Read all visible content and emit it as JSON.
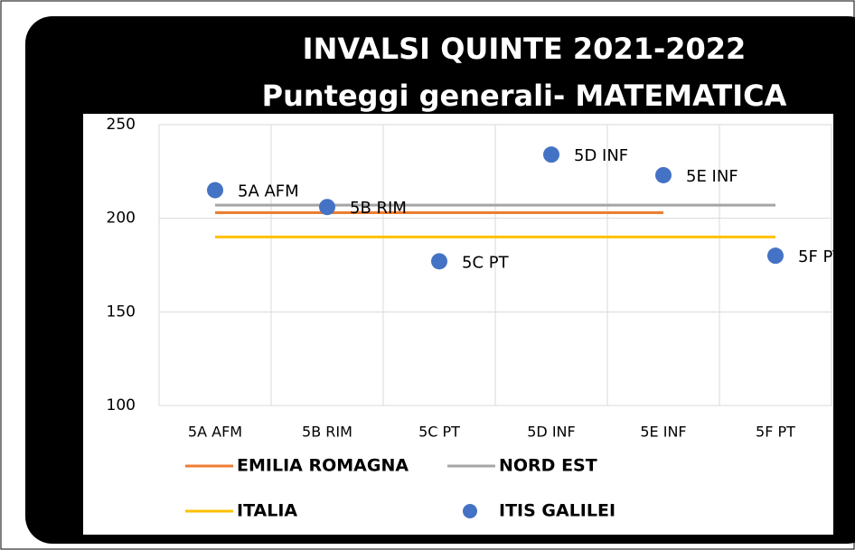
{
  "chart_data": {
    "type": "line",
    "title": [
      "INVALSI QUINTE 2021-2022",
      "Punteggi generali- MATEMATICA"
    ],
    "categories": [
      "5A AFM",
      "5B RIM",
      "5C PT",
      "5D INF",
      "5E INF",
      "5F PT"
    ],
    "series": [
      {
        "name": "EMILIA ROMAGNA",
        "color": "#ed7d31",
        "type": "line",
        "values": [
          203,
          203,
          203,
          203,
          203,
          null
        ]
      },
      {
        "name": "NORD EST",
        "color": "#a5a5a5",
        "type": "line",
        "values": [
          207,
          207,
          207,
          207,
          207,
          207
        ]
      },
      {
        "name": "ITALIA",
        "color": "#ffc000",
        "type": "line",
        "values": [
          190,
          190,
          190,
          190,
          190,
          190
        ]
      },
      {
        "name": "ITIS GALILEI",
        "color": "#4472c4",
        "type": "scatter",
        "values": [
          215,
          206,
          177,
          234,
          223,
          180
        ]
      }
    ],
    "ylim": [
      100,
      250
    ],
    "yticks": [
      100,
      150,
      200,
      250
    ],
    "grid": true
  }
}
